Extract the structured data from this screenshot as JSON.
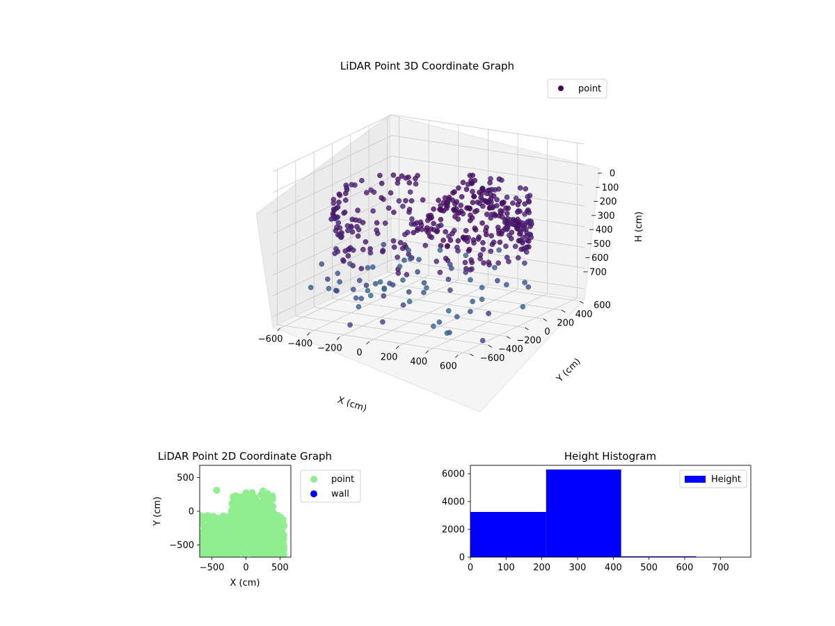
{
  "chart_data": [
    {
      "id": "scatter3d",
      "type": "scatter3d",
      "title": "LiDAR Point 3D Coordinate Graph",
      "xlabel": "X (cm)",
      "ylabel": "Y (cm)",
      "zlabel": "H (cm)",
      "xticks": [
        "−600",
        "−400",
        "−200",
        "0",
        "200",
        "400",
        "600"
      ],
      "yticks": [
        "−600",
        "−400",
        "−200",
        "0",
        "200",
        "400",
        "600"
      ],
      "zticks": [
        "0",
        "100",
        "200",
        "300",
        "400",
        "500",
        "600",
        "700"
      ],
      "xlim": [
        -650,
        650
      ],
      "ylim": [
        -650,
        650
      ],
      "zlim": [
        0,
        750
      ],
      "z_inverted": true,
      "colormap": "viridis",
      "legend": {
        "position": "upper-right",
        "entries": [
          {
            "label": "point",
            "color": "#440154"
          }
        ]
      },
      "note": "approximate reconstruction of a dense point cloud: an oval ring of wall points with a mound-shaped cluster and scattered outliers"
    },
    {
      "id": "scatter2d",
      "type": "scatter",
      "title": "LiDAR Point 2D Coordinate Graph",
      "xlabel": "X (cm)",
      "ylabel": "Y (cm)",
      "xticks": [
        "−500",
        "0",
        "500"
      ],
      "yticks": [
        "−500",
        "0",
        "500"
      ],
      "xlim": [
        -680,
        660
      ],
      "ylim": [
        -680,
        680
      ],
      "legend": {
        "position": "outside-right",
        "entries": [
          {
            "label": "point",
            "color": "#90ee90"
          },
          {
            "label": "wall",
            "color": "#0000ff"
          }
        ]
      }
    },
    {
      "id": "histogram",
      "type": "bar",
      "title": "Height Histogram",
      "xticks": [
        "0",
        "100",
        "200",
        "300",
        "400",
        "500",
        "600",
        "700"
      ],
      "yticks": [
        "0",
        "2000",
        "4000",
        "6000"
      ],
      "xlim": [
        0,
        785
      ],
      "ylim": [
        0,
        6600
      ],
      "bins": [
        {
          "start": 0,
          "end": 212,
          "count": 3250
        },
        {
          "start": 212,
          "end": 422,
          "count": 6300
        },
        {
          "start": 422,
          "end": 632,
          "count": 60
        },
        {
          "start": 632,
          "end": 785,
          "count": 0
        }
      ],
      "color": "#0000ff",
      "legend": {
        "position": "upper-right",
        "entries": [
          {
            "label": "Height",
            "color": "#0000ff"
          }
        ]
      }
    }
  ]
}
